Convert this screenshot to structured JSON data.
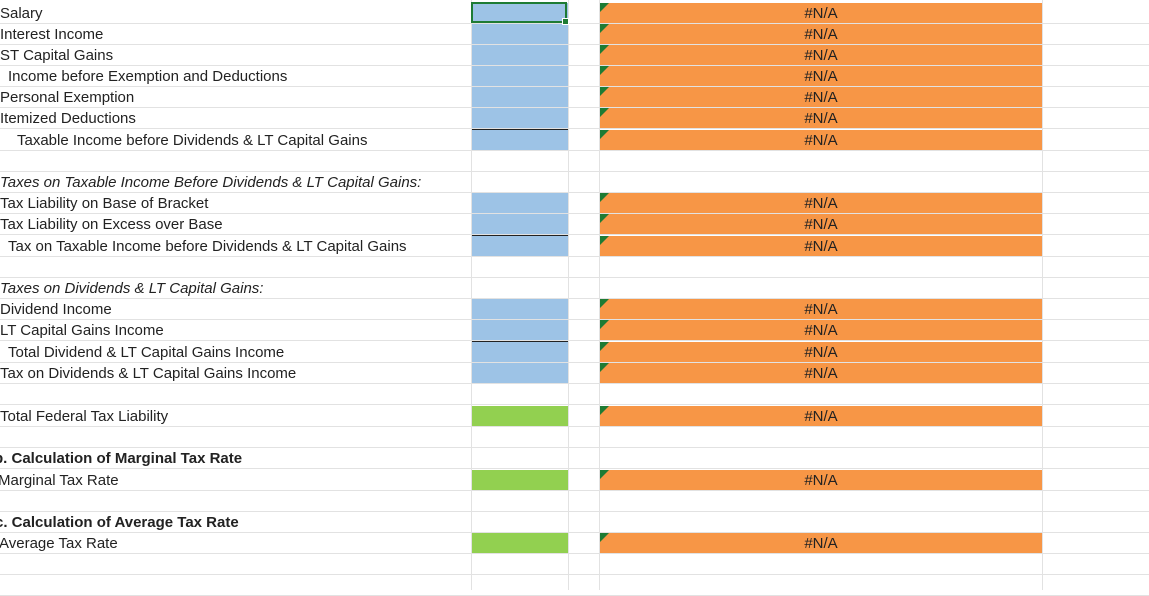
{
  "rows": [
    {
      "label": "Salary",
      "value": "#N/A"
    },
    {
      "label": "Interest Income",
      "value": "#N/A"
    },
    {
      "label": "ST Capital Gains",
      "value": "#N/A"
    },
    {
      "label": "Income before Exemption and Deductions",
      "value": "#N/A"
    },
    {
      "label": "Personal Exemption",
      "value": "#N/A"
    },
    {
      "label": "Itemized Deductions",
      "value": "#N/A"
    },
    {
      "label": "Taxable Income before Dividends & LT Capital Gains",
      "value": "#N/A"
    },
    {
      "label": "Taxes on Taxable Income Before Dividends & LT Capital Gains:"
    },
    {
      "label": "Tax Liability on Base of Bracket",
      "value": "#N/A"
    },
    {
      "label": "Tax Liability on Excess over Base",
      "value": "#N/A"
    },
    {
      "label": "Tax on Taxable Income before Dividends & LT Capital Gains",
      "value": "#N/A"
    },
    {
      "label": "Taxes on Dividends & LT Capital Gains:"
    },
    {
      "label": "Dividend Income",
      "value": "#N/A"
    },
    {
      "label": "LT Capital Gains Income",
      "value": "#N/A"
    },
    {
      "label": "Total Dividend & LT Capital Gains Income",
      "value": "#N/A"
    },
    {
      "label": "Tax on Dividends & LT Capital Gains Income",
      "value": "#N/A"
    },
    {
      "label": "Total Federal Tax Liability",
      "value": "#N/A"
    },
    {
      "label": "b. Calculation of Marginal Tax Rate"
    },
    {
      "label": "Marginal Tax Rate",
      "value": "#N/A"
    },
    {
      "label": "c. Calculation of Average Tax Rate"
    },
    {
      "label": "Average Tax Rate",
      "value": "#N/A"
    }
  ],
  "colors": {
    "input_fill": "#9dc3e6",
    "result_fill": "#92d050",
    "output_fill": "#f79646",
    "comment_marker": "#1e7b34"
  }
}
